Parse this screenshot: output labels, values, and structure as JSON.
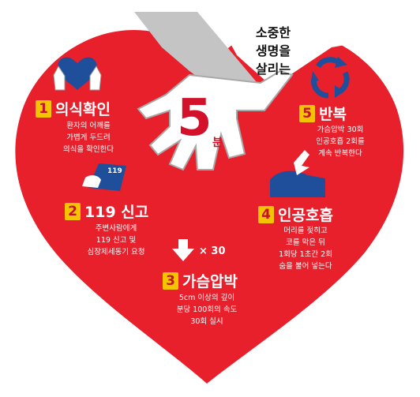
{
  "title_lines": [
    "소중한",
    "생명을",
    "살리는"
  ],
  "center_number": "5",
  "center_unit": "분",
  "steps": [
    {
      "num": "1",
      "title": "의식확인",
      "desc": [
        "환자의 어깨를",
        "가볍게 두드려",
        "의식을 확인한다"
      ],
      "icon": "hands-heart-icon"
    },
    {
      "num": "2",
      "title": "119 신고",
      "desc": [
        "주변사람에게",
        "119 신고 및",
        "심장제세동기 요청"
      ],
      "icon": "phone-card-icon",
      "badge": "119"
    },
    {
      "num": "3",
      "title": "가슴압박",
      "desc": [
        "5cm 이상의 깊이",
        "분당 100회의 속도",
        "30회 실시"
      ],
      "icon": "down-arrow-icon",
      "times": "× 30"
    },
    {
      "num": "4",
      "title": "인공호흡",
      "desc": [
        "머리를 젖히고",
        "코를 막은 뒤",
        "1회당 1초간 2회",
        "숨을 불어 넣는다"
      ],
      "icon": "rescue-breath-icon"
    },
    {
      "num": "5",
      "title": "반복",
      "desc": [
        "가슴압박 30회",
        "인공호흡 2회를",
        "계속 반복한다"
      ],
      "icon": "cycle-arrows-icon"
    }
  ],
  "colors": {
    "heart_red": "#e8202c",
    "hand_gray": "#bdbdbd",
    "badge_yellow": "#f5c400",
    "icon_blue": "#1f4f9a",
    "title_red": "#d4112a"
  }
}
